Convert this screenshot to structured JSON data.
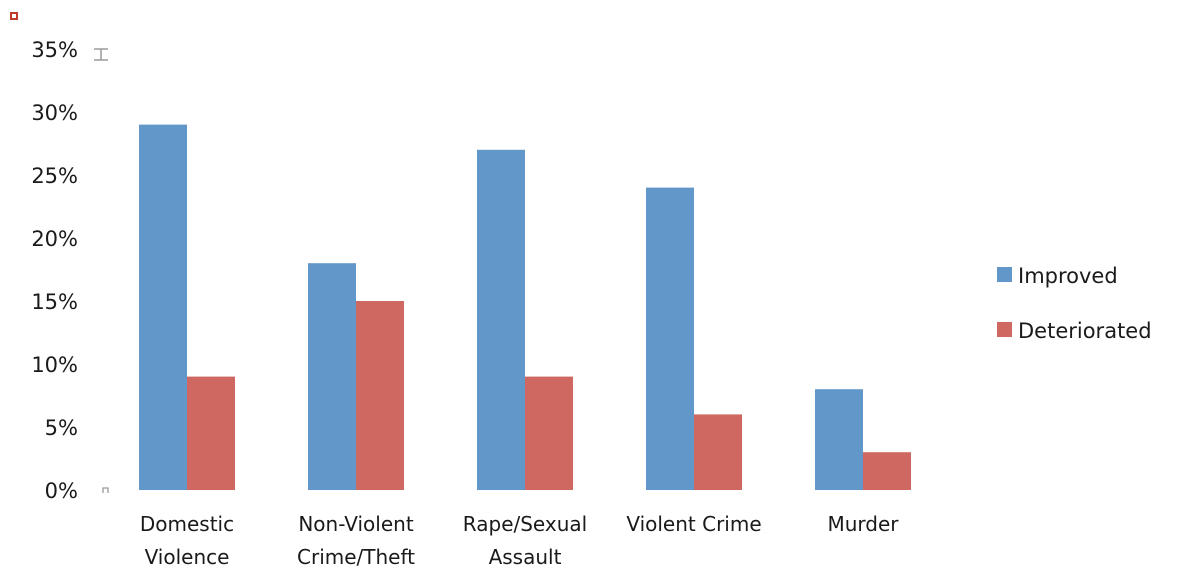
{
  "chart_data": {
    "type": "bar",
    "categories": [
      [
        "Domestic",
        "Violence"
      ],
      [
        "Non-Violent",
        "Crime/Theft"
      ],
      [
        "Rape/Sexual",
        "Assault"
      ],
      [
        "Violent Crime"
      ],
      [
        "Murder"
      ]
    ],
    "series": [
      {
        "name": "Improved",
        "color": "#6197c9",
        "values": [
          29,
          18,
          27,
          24,
          8
        ]
      },
      {
        "name": "Deteriorated",
        "color": "#cf6861",
        "values": [
          9,
          15,
          9,
          6,
          3
        ]
      }
    ],
    "y_ticks": [
      "0%",
      "5%",
      "10%",
      "15%",
      "20%",
      "25%",
      "30%",
      "35%"
    ],
    "ylim": [
      0,
      35
    ],
    "y_unit": "%",
    "grid": false,
    "legend_position": "right",
    "title": "",
    "xlabel": "",
    "ylabel": ""
  }
}
